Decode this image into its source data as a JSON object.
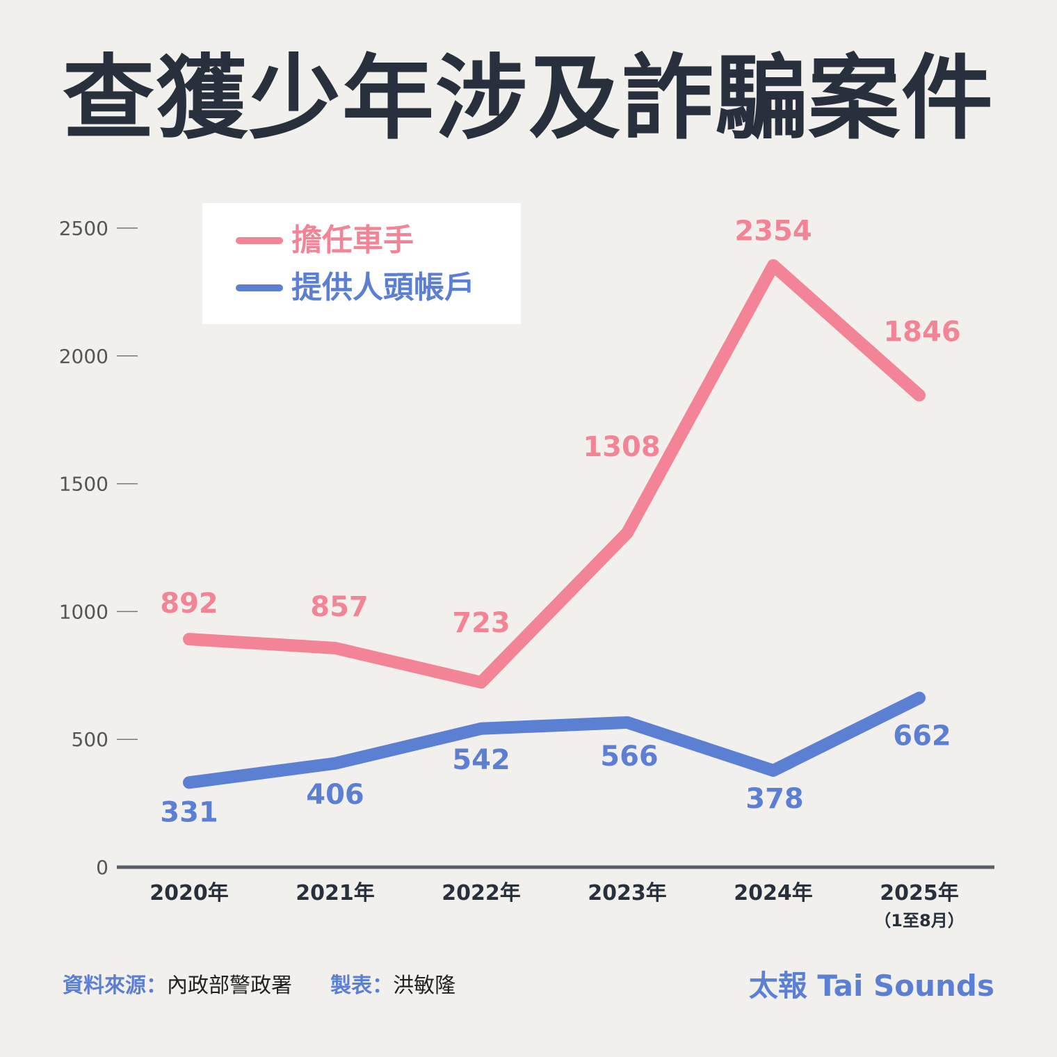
{
  "title": "查獲少年涉及詐騙案件",
  "chart_data": {
    "type": "line",
    "categories": [
      "2020年",
      "2021年",
      "2022年",
      "2023年",
      "2024年",
      "2025年"
    ],
    "category_notes": [
      "",
      "",
      "",
      "",
      "",
      "（1至8月）"
    ],
    "y_ticks": [
      "2500",
      "2000",
      "1500",
      "1000",
      "500",
      "0"
    ],
    "ylim": [
      0,
      2500
    ],
    "legend_placement": "top-left",
    "grid": false,
    "series": [
      {
        "name": "擔任車手",
        "color": "#f28496",
        "values": [
          892,
          857,
          723,
          1308,
          2354,
          1846
        ],
        "labels": [
          "892",
          "857",
          "723",
          "1308",
          "2354",
          "1846"
        ]
      },
      {
        "name": "提供人頭帳戶",
        "color": "#5b7fd3",
        "values": [
          331,
          406,
          542,
          566,
          378,
          662
        ],
        "labels": [
          "331",
          "406",
          "542",
          "566",
          "378",
          "662"
        ]
      }
    ]
  },
  "footer": {
    "source_key": "資料來源：",
    "source_value": "內政部警政署",
    "maker_key": "製表：",
    "maker_value": "洪敏隆",
    "brand": "太報 Tai Sounds"
  }
}
